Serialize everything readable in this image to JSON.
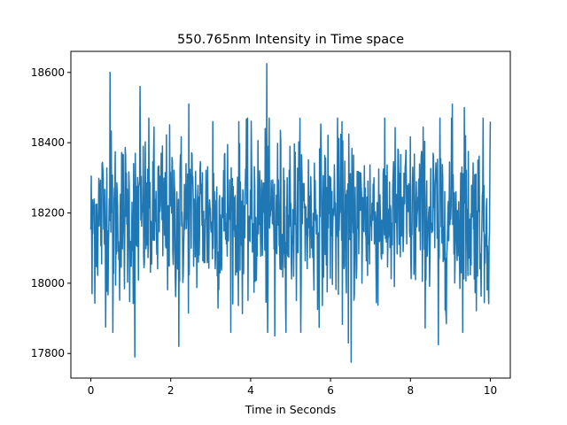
{
  "chart_data": {
    "type": "line",
    "title": "550.765nm Intensity in Time space",
    "xlabel": "Time in Seconds",
    "ylabel": "",
    "xlim": [
      -0.5,
      10.5
    ],
    "ylim": [
      17730,
      18660
    ],
    "x_ticks": [
      0,
      2,
      4,
      6,
      8,
      10
    ],
    "y_ticks": [
      17800,
      18000,
      18200,
      18400,
      18600
    ],
    "grid": false,
    "legend": "none",
    "series": [
      {
        "color": "#1f77b4",
        "x_start": 0,
        "x_end": 10,
        "n_points": 1000,
        "mean": 18190,
        "std": 120,
        "notable_points": [
          {
            "x": 0.03,
            "y": 17970
          },
          {
            "x": 0.48,
            "y": 18600
          },
          {
            "x": 0.55,
            "y": 17860
          },
          {
            "x": 1.1,
            "y": 17790
          },
          {
            "x": 1.23,
            "y": 18560
          },
          {
            "x": 2.2,
            "y": 17820
          },
          {
            "x": 2.45,
            "y": 18510
          },
          {
            "x": 3.05,
            "y": 18460
          },
          {
            "x": 4.4,
            "y": 18625
          },
          {
            "x": 4.42,
            "y": 17860
          },
          {
            "x": 4.6,
            "y": 17850
          },
          {
            "x": 6.45,
            "y": 17830
          },
          {
            "x": 6.52,
            "y": 17775
          },
          {
            "x": 8.7,
            "y": 17825
          },
          {
            "x": 9.05,
            "y": 18510
          },
          {
            "x": 9.35,
            "y": 18500
          },
          {
            "x": 9.85,
            "y": 17945
          },
          {
            "x": 10.0,
            "y": 18460
          }
        ]
      }
    ]
  }
}
